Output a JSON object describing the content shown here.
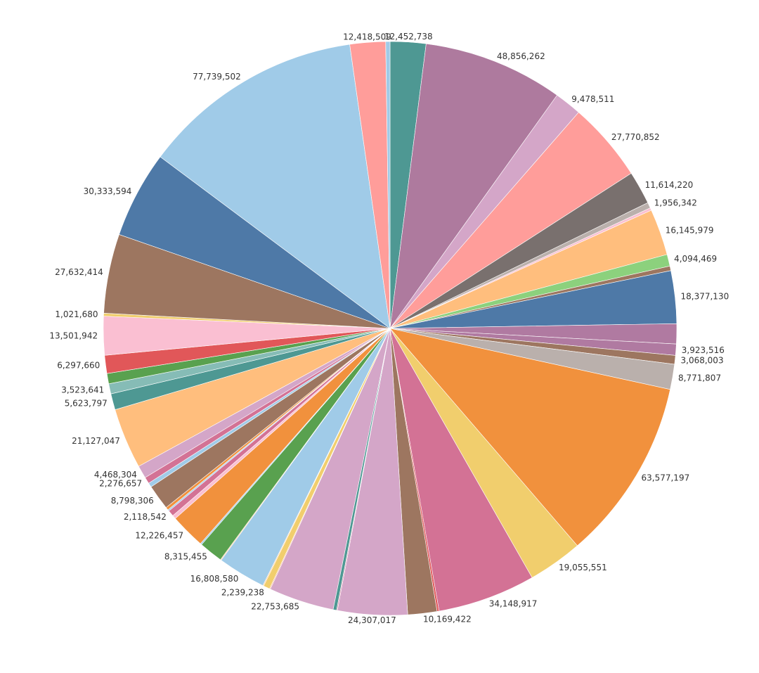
{
  "chart_data": {
    "type": "pie",
    "title": "",
    "slices": [
      {
        "value": 12452738,
        "label": "12,452,738",
        "color": "#4e9893"
      },
      {
        "value": 48856262,
        "label": "48,856,262",
        "color": "#ae7a9e"
      },
      {
        "value": 9478511,
        "label": "9,478,511",
        "color": "#d4a6c8"
      },
      {
        "value": 27770852,
        "label": "27,770,852",
        "color": "#ff9d9a"
      },
      {
        "value": 11614220,
        "label": "11,614,220",
        "color": "#79706e"
      },
      {
        "value": 1956342,
        "label": "1,956,342",
        "color": "#bab0ac"
      },
      {
        "value": 900000,
        "label": "",
        "color": "#fabfd2"
      },
      {
        "value": 16145979,
        "label": "16,145,979",
        "color": "#ffbe7d"
      },
      {
        "value": 4094469,
        "label": "4,094,469",
        "color": "#8cd17d"
      },
      {
        "value": 1600000,
        "label": "",
        "color": "#9d7660"
      },
      {
        "value": 18377130,
        "label": "18,377,130",
        "color": "#4e79a7"
      },
      {
        "value": 7000000,
        "label": "",
        "color": "#b07aa1"
      },
      {
        "value": 3923516,
        "label": "3,923,516",
        "color": "#b07aa1"
      },
      {
        "value": 3068003,
        "label": "3,068,003",
        "color": "#9d7660"
      },
      {
        "value": 8771807,
        "label": "8,771,807",
        "color": "#bab0ac"
      },
      {
        "value": 63577197,
        "label": "63,577,197",
        "color": "#f1913d"
      },
      {
        "value": 19055551,
        "label": "19,055,551",
        "color": "#f1ce6d"
      },
      {
        "value": 34148917,
        "label": "34,148,917",
        "color": "#d37295"
      },
      {
        "value": 700000,
        "label": "",
        "color": "#e15759"
      },
      {
        "value": 10169422,
        "label": "10,169,422",
        "color": "#9d7660"
      },
      {
        "value": 24307017,
        "label": "24,307,017",
        "color": "#d4a6c8"
      },
      {
        "value": 300000,
        "label": "",
        "color": "#d37295"
      },
      {
        "value": 1200000,
        "label": "",
        "color": "#4e9893"
      },
      {
        "value": 22753685,
        "label": "22,753,685",
        "color": "#d4a6c8"
      },
      {
        "value": 300000,
        "label": "",
        "color": "#f4a582"
      },
      {
        "value": 2239238,
        "label": "2,239,238",
        "color": "#f1ce6d"
      },
      {
        "value": 300000,
        "label": "",
        "color": "#ffbe7d"
      },
      {
        "value": 16808580,
        "label": "16,808,580",
        "color": "#a0cbe8"
      },
      {
        "value": 300000,
        "label": "",
        "color": "#ffbe7d"
      },
      {
        "value": 8315455,
        "label": "8,315,455",
        "color": "#59a14f"
      },
      {
        "value": 500000,
        "label": "",
        "color": "#a0cbe8"
      },
      {
        "value": 12226457,
        "label": "12,226,457",
        "color": "#f1913d"
      },
      {
        "value": 1300000,
        "label": "",
        "color": "#fabfd2"
      },
      {
        "value": 2118542,
        "label": "2,118,542",
        "color": "#d37295"
      },
      {
        "value": 500000,
        "label": "",
        "color": "#a0cbe8"
      },
      {
        "value": 1000000,
        "label": "",
        "color": "#f1913d"
      },
      {
        "value": 8798306,
        "label": "8,798,306",
        "color": "#9d7660"
      },
      {
        "value": 1500000,
        "label": "",
        "color": "#a0cbe8"
      },
      {
        "value": 2276657,
        "label": "2,276,657",
        "color": "#d37295"
      },
      {
        "value": 4468304,
        "label": "4,468,304",
        "color": "#d4a6c8"
      },
      {
        "value": 21127047,
        "label": "21,127,047",
        "color": "#ffbe7d"
      },
      {
        "value": 5623797,
        "label": "5,623,797",
        "color": "#4e9893"
      },
      {
        "value": 3523641,
        "label": "3,523,641",
        "color": "#86bcb6"
      },
      {
        "value": 3600000,
        "label": "",
        "color": "#59a14f"
      },
      {
        "value": 6297660,
        "label": "6,297,660",
        "color": "#e15759"
      },
      {
        "value": 13501942,
        "label": "13,501,942",
        "color": "#fabfd2"
      },
      {
        "value": 1021680,
        "label": "1,021,680",
        "color": "#f1ce6d"
      },
      {
        "value": 27632414,
        "label": "27,632,414",
        "color": "#9d7660"
      },
      {
        "value": 30333594,
        "label": "30,333,594",
        "color": "#4e79a7"
      },
      {
        "value": 77739502,
        "label": "77,739,502",
        "color": "#a0cbe8"
      },
      {
        "value": 12418509,
        "label": "12,418,509",
        "color": "#ff9d9a"
      },
      {
        "value": 1500000,
        "label": "",
        "color": "#a0cbe8"
      }
    ]
  }
}
